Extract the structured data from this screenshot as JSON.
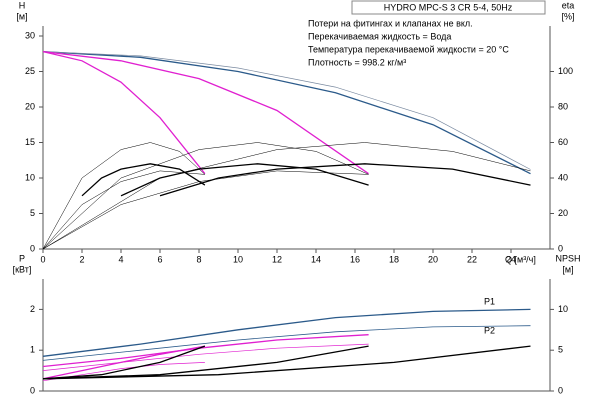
{
  "chart_data": [
    {
      "type": "line",
      "title": "HYDRO MPC-S 3 CR 5-4, 50Hz",
      "annotations": [
        "Потери на фитингах и клапанах не вкл.",
        "Перекачиваемая жидкость = Вода",
        "Температура перекачиваемой жидкости = 20 °C",
        "Плотность = 998.2 кг/м³"
      ],
      "x_label": "Q [м³/ч]",
      "y_label": "H",
      "y_unit": "[м]",
      "y2_label": "eta",
      "y2_unit": "[%]",
      "xlim": [
        0,
        26
      ],
      "xticks": [
        0,
        2,
        4,
        6,
        8,
        10,
        12,
        14,
        16,
        18,
        20,
        22,
        24
      ],
      "ylim": [
        0,
        30
      ],
      "yticks": [
        0,
        5,
        10,
        15,
        20,
        25,
        30
      ],
      "y2lim": [
        0,
        120
      ],
      "y2ticks": [
        0,
        20,
        40,
        60,
        80,
        100
      ],
      "series": [
        {
          "color": "#2b5a8a",
          "width": 1.3,
          "x": [
            0,
            5,
            10,
            15,
            20,
            25
          ],
          "values": [
            27.8,
            27,
            25,
            22,
            17.5,
            10.6
          ]
        },
        {
          "color": "#7a8aa0",
          "width": 0.7,
          "x": [
            0,
            5,
            10,
            15,
            20,
            25
          ],
          "values": [
            27.8,
            27.2,
            25.5,
            22.8,
            18.5,
            11.2
          ]
        },
        {
          "color": "#e020d0",
          "width": 1.3,
          "x": [
            0,
            4,
            8,
            12,
            16.7
          ],
          "values": [
            27.8,
            26.5,
            24,
            19.5,
            10.6
          ]
        },
        {
          "color": "#e020d0",
          "width": 1.3,
          "x": [
            0,
            2,
            4,
            6,
            8.3
          ],
          "values": [
            27.8,
            26.5,
            23.5,
            18.5,
            10.6
          ]
        },
        {
          "color": "#000000",
          "width": 1.3,
          "axis": "y2",
          "x": [
            2,
            3,
            4,
            5.5,
            7,
            8.3
          ],
          "values": [
            30,
            40,
            45,
            48,
            45,
            36
          ]
        },
        {
          "color": "#000000",
          "width": 1.3,
          "axis": "y2",
          "x": [
            4,
            6,
            8,
            11,
            14,
            16.7
          ],
          "values": [
            30,
            40,
            45,
            48,
            45,
            36
          ]
        },
        {
          "color": "#000000",
          "width": 1.3,
          "axis": "y2",
          "x": [
            6,
            9,
            12,
            16.5,
            21,
            25
          ],
          "values": [
            30,
            40,
            45,
            48,
            45,
            36
          ]
        },
        {
          "color": "#000000",
          "width": 0.5,
          "axis": "y2",
          "x": [
            0,
            2,
            4,
            5.5,
            7,
            8.3
          ],
          "values": [
            0,
            40,
            56,
            60,
            55,
            42
          ]
        },
        {
          "color": "#000000",
          "width": 0.5,
          "axis": "y2",
          "x": [
            0,
            4,
            8,
            11,
            14,
            16.7
          ],
          "values": [
            0,
            40,
            56,
            60,
            55,
            42
          ]
        },
        {
          "color": "#000000",
          "width": 0.5,
          "axis": "y2",
          "x": [
            0,
            6,
            12,
            16.5,
            21,
            25
          ],
          "values": [
            0,
            40,
            56,
            60,
            55,
            44
          ]
        },
        {
          "color": "#000000",
          "width": 0.5,
          "axis": "y2",
          "x": [
            0,
            2,
            4,
            6,
            8.3
          ],
          "values": [
            0,
            25,
            38,
            44,
            42
          ]
        },
        {
          "color": "#000000",
          "width": 0.5,
          "axis": "y2",
          "x": [
            0,
            4,
            8,
            12,
            16.7
          ],
          "values": [
            0,
            25,
            38,
            44,
            42
          ]
        }
      ]
    },
    {
      "type": "line",
      "annotations": [
        "P1",
        "P2"
      ],
      "y_label": "P",
      "y_unit": "[кВт]",
      "y2_label": "NPSH",
      "y2_unit": "[м]",
      "xlim": [
        0,
        26
      ],
      "ylim": [
        0,
        2.5
      ],
      "yticks": [
        0,
        1,
        2
      ],
      "y2lim": [
        0,
        12.5
      ],
      "y2ticks": [
        0,
        5,
        10
      ],
      "series": [
        {
          "color": "#2b5a8a",
          "width": 1.3,
          "x": [
            0,
            5,
            10,
            15,
            20,
            25
          ],
          "values": [
            0.85,
            1.15,
            1.5,
            1.8,
            1.95,
            2.0
          ]
        },
        {
          "color": "#2b5a8a",
          "width": 0.8,
          "x": [
            0,
            5,
            10,
            15,
            20,
            25
          ],
          "values": [
            0.75,
            1.0,
            1.25,
            1.45,
            1.57,
            1.6
          ]
        },
        {
          "color": "#e020d0",
          "width": 1.3,
          "x": [
            0,
            4,
            8,
            12,
            16.7
          ],
          "values": [
            0.6,
            0.8,
            1.05,
            1.25,
            1.38
          ]
        },
        {
          "color": "#e020d0",
          "width": 1.3,
          "x": [
            0,
            2,
            4,
            6,
            8.3
          ],
          "values": [
            0.3,
            0.5,
            0.7,
            0.9,
            1.1
          ]
        },
        {
          "color": "#e020d0",
          "width": 0.7,
          "x": [
            0,
            4,
            8,
            12,
            16.7
          ],
          "values": [
            0.5,
            0.7,
            0.9,
            1.05,
            1.15
          ]
        },
        {
          "color": "#e020d0",
          "width": 0.7,
          "x": [
            0,
            2,
            4,
            6,
            8.3
          ],
          "values": [
            0.25,
            0.4,
            0.55,
            0.65,
            0.7
          ]
        },
        {
          "color": "#000000",
          "width": 1.3,
          "axis": "y2",
          "x": [
            0,
            3,
            6,
            8.3
          ],
          "values": [
            1.5,
            2,
            3.5,
            5.5
          ]
        },
        {
          "color": "#000000",
          "width": 1.3,
          "axis": "y2",
          "x": [
            0,
            6,
            12,
            16.7
          ],
          "values": [
            1.5,
            2,
            3.5,
            5.5
          ]
        },
        {
          "color": "#000000",
          "width": 1.3,
          "axis": "y2",
          "x": [
            0,
            9,
            18,
            25
          ],
          "values": [
            1.5,
            2,
            3.5,
            5.5
          ]
        }
      ]
    }
  ]
}
